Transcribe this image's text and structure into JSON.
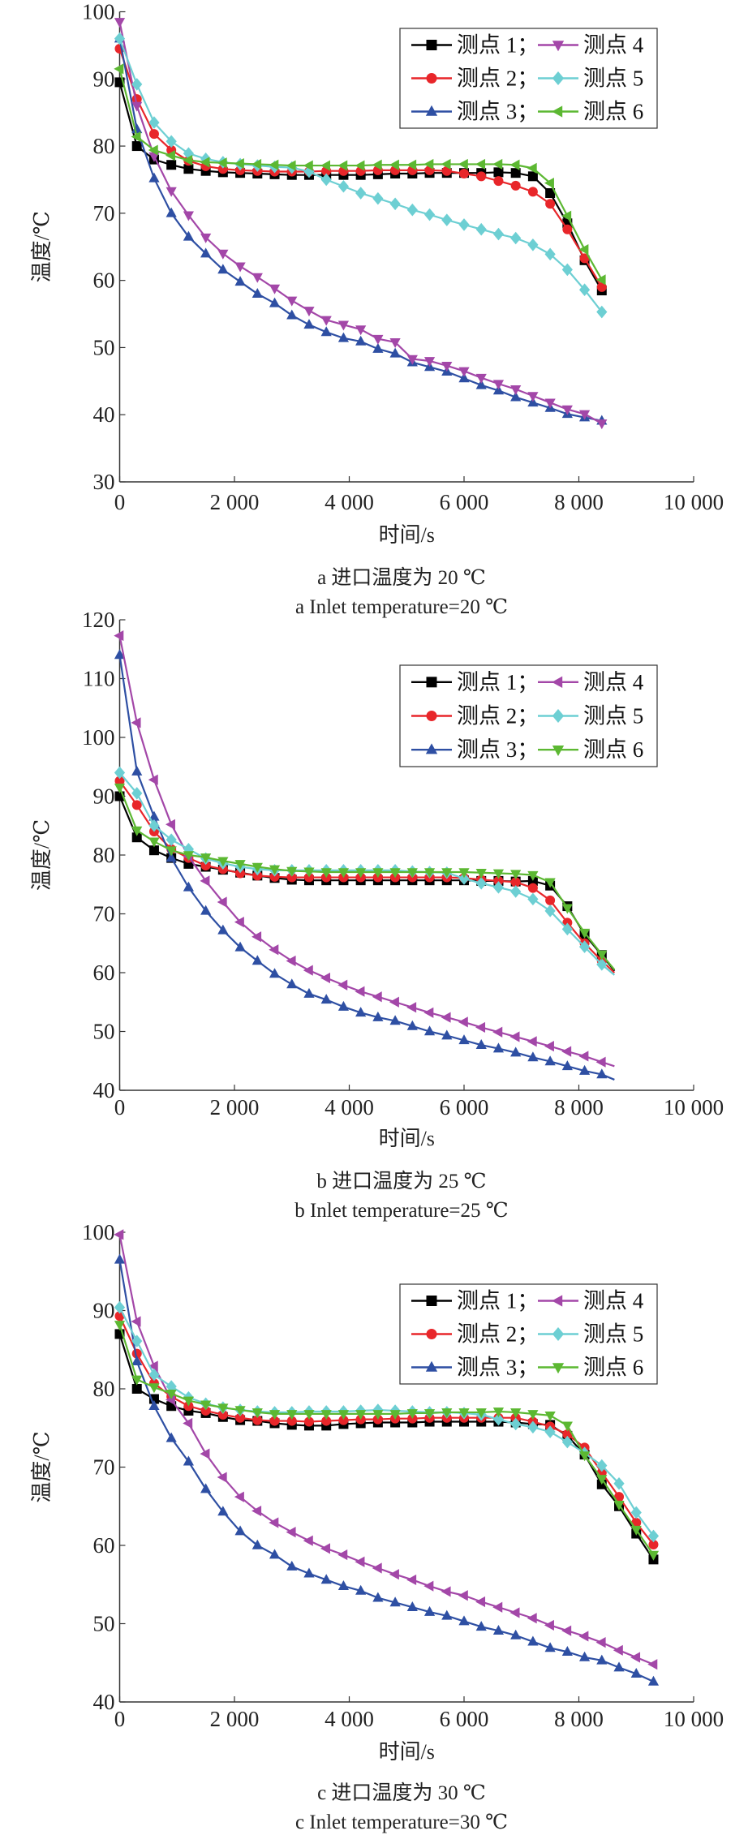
{
  "chart_data": [
    {
      "type": "line",
      "id": "a",
      "xlabel": "时间/s",
      "ylabel": "温度/℃",
      "xlim": [
        0,
        10000
      ],
      "ylim": [
        30,
        100
      ],
      "xticks": [
        0,
        2000,
        4000,
        6000,
        8000,
        10000
      ],
      "xtick_labels": [
        "0",
        "2 000",
        "4 000",
        "6 000",
        "8 000",
        "10 000"
      ],
      "yticks": [
        30,
        40,
        50,
        60,
        70,
        80,
        90,
        100
      ],
      "ytick_labels": [
        "30",
        "40",
        "50",
        "60",
        "70",
        "80",
        "90",
        "100"
      ],
      "legend_position": "top-right",
      "caption_cn": "a  进口温度为 20 ℃",
      "caption_en": "a  Inlet temperature=20 ℃",
      "x": [
        0,
        300,
        600,
        900,
        1200,
        1500,
        1800,
        2100,
        2400,
        2700,
        3000,
        3300,
        3600,
        3900,
        4200,
        4500,
        4800,
        5100,
        5400,
        5700,
        6000,
        6300,
        6600,
        6900,
        7200,
        7500,
        7800,
        8100,
        8400
      ],
      "series": [
        {
          "name": "测点 1；",
          "color": "#000000",
          "marker": "square",
          "values": [
            89.5,
            80,
            78,
            77.2,
            76.6,
            76.3,
            76.1,
            76.0,
            75.9,
            75.8,
            75.7,
            75.7,
            75.7,
            75.7,
            75.7,
            75.8,
            75.9,
            75.9,
            76,
            76,
            76,
            76,
            76.1,
            76.0,
            75.5,
            73,
            68.5,
            63,
            58.5
          ]
        },
        {
          "name": "测点 2；",
          "color": "#e8262a",
          "marker": "circle",
          "values": [
            94.5,
            87,
            81.8,
            79.4,
            77.8,
            77,
            76.6,
            76.4,
            76.3,
            76.2,
            76.2,
            76.2,
            76.3,
            76.3,
            76.3,
            76.4,
            76.4,
            76.4,
            76.4,
            76.3,
            75.9,
            75.5,
            74.8,
            74.1,
            73.2,
            71.4,
            67.6,
            63.3,
            59
          ]
        },
        {
          "name": "测点 3；",
          "color": "#2e4fa3",
          "marker": "triangle-up",
          "values": [
            96,
            82.5,
            75.2,
            70,
            66.5,
            64,
            61.6,
            59.8,
            58,
            56.6,
            54.8,
            53.4,
            52.3,
            51.4,
            50.9,
            49.8,
            49.1,
            47.8,
            47.1,
            46.4,
            45.4,
            44.4,
            43.6,
            42.6,
            41.8,
            41,
            40.1,
            39.6,
            39.1
          ]
        },
        {
          "name": "测点 4",
          "color": "#a347a8",
          "marker": "triangle-down",
          "values": [
            98.5,
            86,
            78.5,
            73.3,
            69.7,
            66.4,
            64,
            62.1,
            60.5,
            58.8,
            57,
            55.5,
            54.1,
            53.4,
            52.7,
            51.3,
            50.8,
            48.3,
            48.0,
            47.3,
            46.5,
            45.5,
            44.6,
            43.8,
            42.8,
            41.8,
            40.8,
            40.1,
            38.7
          ]
        },
        {
          "name": "测点 5",
          "color": "#6dcfd3",
          "marker": "diamond",
          "values": [
            96,
            89.2,
            83.5,
            80.7,
            78.9,
            78.1,
            77.6,
            77.3,
            77.1,
            76.9,
            76.8,
            76.2,
            75.0,
            74.0,
            73.0,
            72.2,
            71.4,
            70.5,
            69.8,
            69,
            68.3,
            67.6,
            66.9,
            66.3,
            65.3,
            63.9,
            61.6,
            58.6,
            55.3
          ]
        },
        {
          "name": "测点 6",
          "color": "#5cb832",
          "marker": "triangle-left",
          "values": [
            91.5,
            81.4,
            79.4,
            78.6,
            77.9,
            77.6,
            77.5,
            77.4,
            77.3,
            77.2,
            77.1,
            77.1,
            77.1,
            77.1,
            77.1,
            77.2,
            77.2,
            77.2,
            77.3,
            77.3,
            77.3,
            77.3,
            77.3,
            77.2,
            76.7,
            74.5,
            69.6,
            64.6,
            60.1
          ]
        }
      ]
    },
    {
      "type": "line",
      "id": "b",
      "xlabel": "时间/s",
      "ylabel": "温度/℃",
      "xlim": [
        0,
        10000
      ],
      "ylim": [
        40,
        120
      ],
      "xticks": [
        0,
        2000,
        4000,
        6000,
        8000,
        10000
      ],
      "xtick_labels": [
        "0",
        "2 000",
        "4 000",
        "6 000",
        "8 000",
        "10 000"
      ],
      "yticks": [
        40,
        50,
        60,
        70,
        80,
        90,
        100,
        110,
        120
      ],
      "ytick_labels": [
        "40",
        "50",
        "60",
        "70",
        "80",
        "90",
        "100",
        "110",
        "120"
      ],
      "legend_position": "top-right",
      "caption_cn": "b  进口温度为 25 ℃",
      "caption_en": "b  Inlet temperature=25 ℃",
      "x": [
        0,
        300,
        600,
        900,
        1200,
        1500,
        1800,
        2100,
        2400,
        2700,
        3000,
        3300,
        3600,
        3900,
        4200,
        4500,
        4800,
        5100,
        5400,
        5700,
        6000,
        6300,
        6600,
        6900,
        7200,
        7500,
        7800,
        8100,
        8400
      ],
      "end_x": 8620,
      "series": [
        {
          "name": "测点 1；",
          "color": "#000000",
          "marker": "square",
          "end_value": 60.3,
          "values": [
            90,
            83,
            80.8,
            79.5,
            78.5,
            78,
            77.5,
            77,
            76.5,
            76.1,
            75.8,
            75.7,
            75.7,
            75.7,
            75.7,
            75.7,
            75.7,
            75.7,
            75.7,
            75.7,
            75.7,
            75.6,
            75.6,
            75.5,
            75.6,
            74.8,
            71.3,
            66.5,
            63
          ]
        },
        {
          "name": "测点 2；",
          "color": "#e8262a",
          "marker": "circle",
          "end_value": 60,
          "values": [
            92.6,
            88.5,
            84,
            81,
            79.5,
            78.2,
            77.6,
            76.9,
            76.5,
            76.3,
            76.2,
            76.2,
            76.2,
            76.2,
            76.2,
            76.2,
            76.2,
            76.2,
            76.2,
            76.2,
            76.1,
            75.8,
            75.6,
            75.4,
            74.4,
            72.3,
            68.5,
            65,
            62
          ]
        },
        {
          "name": "测点 3；",
          "color": "#2e4fa3",
          "marker": "triangle-up",
          "end_value": 41.8,
          "values": [
            114,
            94.2,
            86.5,
            79.5,
            74.5,
            70.5,
            67.2,
            64.3,
            62,
            59.8,
            58,
            56.4,
            55.4,
            54.2,
            53.2,
            52.4,
            51.8,
            50.9,
            50,
            49.3,
            48.5,
            47.7,
            47.1,
            46.4,
            45.6,
            44.9,
            44.1,
            43.3,
            42.7
          ]
        },
        {
          "name": "测点 4",
          "color": "#a347a8",
          "marker": "triangle-left",
          "end_value": 44.1,
          "values": [
            117.3,
            102.5,
            92.8,
            85.2,
            79.8,
            75.6,
            72,
            68.6,
            66.1,
            63.9,
            62,
            60.4,
            59.1,
            57.9,
            56.8,
            55.9,
            55.0,
            54.1,
            53.2,
            52.4,
            51.6,
            50.7,
            49.9,
            49.1,
            48.3,
            47.5,
            46.6,
            45.8,
            44.8
          ]
        },
        {
          "name": "测点 5",
          "color": "#6dcfd3",
          "marker": "diamond",
          "end_value": 59.6,
          "values": [
            94,
            90.5,
            85,
            82.6,
            81,
            79.4,
            78.6,
            78,
            77.6,
            77.4,
            77.4,
            77.4,
            77.4,
            77.4,
            77.4,
            77.4,
            77.4,
            77.2,
            77.1,
            77.0,
            76,
            75.2,
            74.5,
            73.8,
            72.5,
            70.5,
            67.4,
            64.4,
            61.4
          ]
        },
        {
          "name": "测点 6",
          "color": "#5cb832",
          "marker": "triangle-down",
          "end_value": 60.5,
          "values": [
            91.5,
            84.2,
            82.3,
            80.8,
            80,
            79.6,
            79,
            78.5,
            78,
            77.6,
            77.3,
            77.2,
            77.1,
            77.1,
            77.1,
            77.1,
            77.1,
            77.1,
            77.1,
            77.1,
            77.1,
            77.0,
            76.9,
            76.8,
            76.6,
            75.4,
            71,
            66.8,
            63.1
          ]
        }
      ]
    },
    {
      "type": "line",
      "id": "c",
      "xlabel": "时间/s",
      "ylabel": "温度/℃",
      "xlim": [
        0,
        10000
      ],
      "ylim": [
        40,
        100
      ],
      "xticks": [
        0,
        2000,
        4000,
        6000,
        8000,
        10000
      ],
      "xtick_labels": [
        "0",
        "2 000",
        "4 000",
        "6 000",
        "8 000",
        "10 000"
      ],
      "yticks": [
        40,
        50,
        60,
        70,
        80,
        90,
        100
      ],
      "ytick_labels": [
        "40",
        "50",
        "60",
        "70",
        "80",
        "90",
        "100"
      ],
      "legend_position": "top-right",
      "caption_cn": "c  进口温度为 30 ℃",
      "caption_en": "c  Inlet temperature=30 ℃",
      "x": [
        0,
        300,
        600,
        900,
        1200,
        1500,
        1800,
        2100,
        2400,
        2700,
        3000,
        3300,
        3600,
        3900,
        4200,
        4500,
        4800,
        5100,
        5400,
        5700,
        6000,
        6300,
        6600,
        6900,
        7200,
        7500,
        7800,
        8100,
        8400,
        8700,
        9000,
        9300
      ],
      "series": [
        {
          "name": "测点 1；",
          "color": "#000000",
          "marker": "square",
          "values": [
            87,
            80,
            78.7,
            77.8,
            77.2,
            76.9,
            76.4,
            76.0,
            75.9,
            75.6,
            75.4,
            75.3,
            75.3,
            75.5,
            75.6,
            75.7,
            75.7,
            75.7,
            75.8,
            75.8,
            75.8,
            75.8,
            75.8,
            75.7,
            75.5,
            75.4,
            74.0,
            71.6,
            67.8,
            65,
            61.5,
            58.2
          ]
        },
        {
          "name": "测点 2；",
          "color": "#e8262a",
          "marker": "circle",
          "values": [
            89.3,
            84.5,
            80.7,
            79,
            77.8,
            77.2,
            76.7,
            76.3,
            76,
            75.9,
            75.9,
            75.8,
            75.9,
            76,
            76.1,
            76.1,
            76.2,
            76.2,
            76.3,
            76.3,
            76.3,
            76.3,
            76.3,
            76.3,
            75.8,
            75.2,
            74.2,
            72.5,
            69.3,
            66.2,
            62.9,
            60.1
          ]
        },
        {
          "name": "测点 3；",
          "color": "#2e4fa3",
          "marker": "triangle-up",
          "values": [
            96.5,
            83.5,
            77.8,
            73.7,
            70.7,
            67.2,
            64.3,
            61.8,
            60,
            58.8,
            57.3,
            56.4,
            55.6,
            54.8,
            54.2,
            53.3,
            52.7,
            52.1,
            51.5,
            51,
            50.3,
            49.6,
            49.1,
            48.5,
            47.7,
            46.9,
            46.4,
            45.7,
            45.3,
            44.4,
            43.6,
            42.6
          ]
        },
        {
          "name": "测点 4",
          "color": "#a347a8",
          "marker": "triangle-left",
          "values": [
            99.7,
            88.6,
            82.9,
            78.6,
            75.6,
            71.7,
            68.7,
            66.2,
            64.4,
            62.9,
            61.7,
            60.6,
            59.6,
            58.8,
            57.9,
            57.1,
            56.3,
            55.6,
            54.8,
            54.1,
            53.6,
            52.8,
            52.1,
            51.4,
            50.7,
            49.8,
            49.1,
            48.4,
            47.6,
            46.6,
            45.7,
            44.8
          ]
        },
        {
          "name": "测点 5",
          "color": "#6dcfd3",
          "marker": "diamond",
          "values": [
            90.4,
            86.1,
            81.8,
            80.3,
            78.9,
            78.1,
            77.6,
            77.3,
            77.1,
            77.0,
            77.0,
            77.1,
            77.1,
            77.1,
            77.2,
            77.3,
            77.2,
            77.1,
            77.0,
            77.0,
            76.9,
            76.7,
            76.1,
            75.5,
            75.1,
            74.5,
            73.2,
            71.8,
            70.2,
            67.9,
            64.2,
            61.2
          ]
        },
        {
          "name": "测点 6",
          "color": "#5cb832",
          "marker": "triangle-down",
          "values": [
            88.2,
            81.2,
            80.2,
            79.4,
            78.5,
            78.0,
            77.6,
            77.3,
            77.0,
            76.8,
            76.8,
            76.8,
            76.8,
            76.8,
            76.8,
            76.8,
            76.8,
            76.9,
            76.9,
            77,
            77,
            77,
            77.1,
            77.0,
            76.8,
            76.6,
            75.3,
            71.5,
            68.5,
            65.2,
            62,
            58.8
          ]
        }
      ]
    }
  ]
}
